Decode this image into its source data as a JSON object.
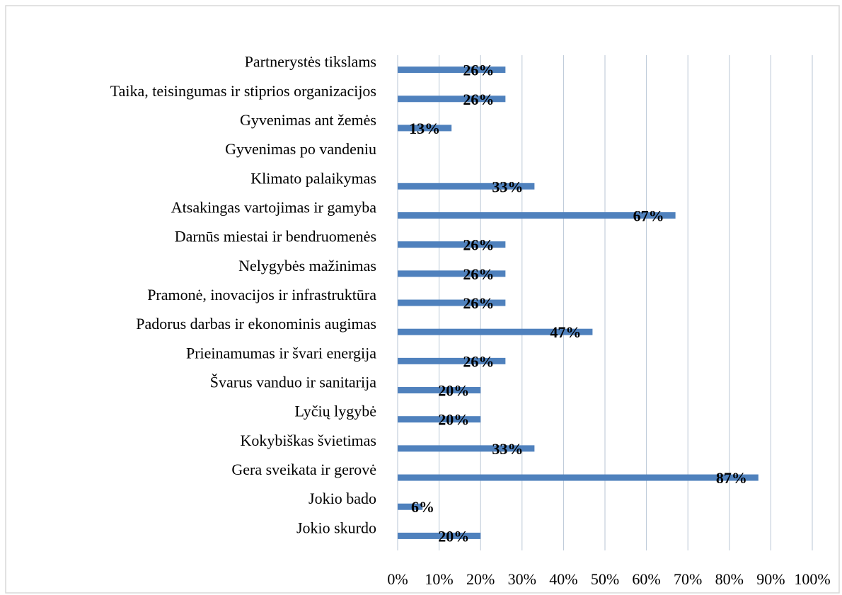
{
  "chart_data": {
    "type": "bar",
    "orientation": "horizontal",
    "categories": [
      "Partnerystės tikslams",
      "Taika, teisingumas ir stiprios organizacijos",
      "Gyvenimas ant žemės",
      "Gyvenimas po vandeniu",
      "Klimato  palaikymas",
      "Atsakingas vartojimas ir gamyba",
      "Darnūs miestai ir bendruomenės",
      "Nelygybės mažinimas",
      "Pramonė, inovacijos ir infrastruktūra",
      "Padorus darbas ir ekonominis augimas",
      "Prieinamumas ir švari energija",
      "Švarus vanduo ir sanitarija",
      "Lyčių lygybė",
      "Kokybiškas švietimas",
      "Gera sveikata ir gerovė",
      "Jokio bado",
      "Jokio skurdo"
    ],
    "values": [
      26,
      26,
      13,
      null,
      33,
      67,
      26,
      26,
      26,
      47,
      26,
      20,
      20,
      33,
      87,
      6,
      20
    ],
    "value_labels": [
      "26%",
      "26%",
      "13%",
      null,
      "33%",
      "67%",
      "26%",
      "26%",
      "26%",
      "47%",
      "26%",
      "20%",
      "20%",
      "33%",
      "87%",
      "6%",
      "20%"
    ],
    "color": "#4f81bd",
    "xlim": [
      0,
      100
    ],
    "xticks": [
      {
        "value": 0,
        "label": "0%"
      },
      {
        "value": 10,
        "label": "10%"
      },
      {
        "value": 20,
        "label": "20%"
      },
      {
        "value": 30,
        "label": "30%"
      },
      {
        "value": 40,
        "label": "40%"
      },
      {
        "value": 50,
        "label": "50%"
      },
      {
        "value": 60,
        "label": "60%"
      },
      {
        "value": 70,
        "label": "70%"
      },
      {
        "value": 80,
        "label": "80%"
      },
      {
        "value": 90,
        "label": "90%"
      },
      {
        "value": 100,
        "label": "100%"
      }
    ],
    "grid": true
  }
}
